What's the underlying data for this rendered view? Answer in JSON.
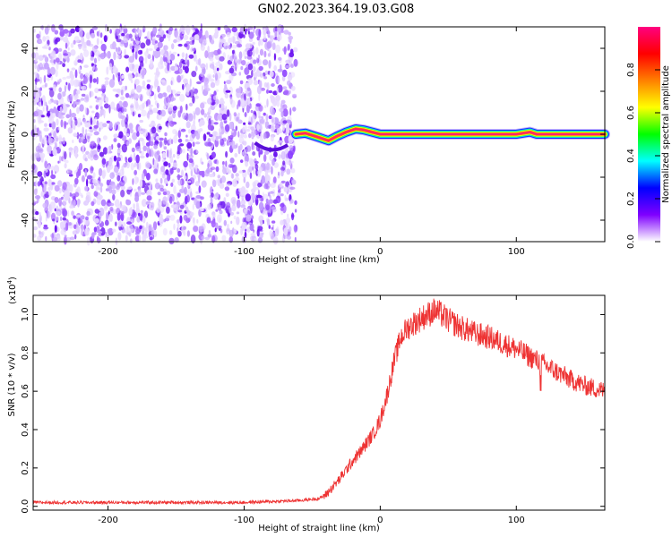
{
  "title": "GN02.2023.364.19.03.G08",
  "colors": {
    "snr_line": "#ee3333",
    "noise_purple": "#7a2cff",
    "trace_core": "#ff2a6a"
  },
  "chart_data": [
    {
      "type": "heatmap",
      "xlabel": "Height of straight line (km)",
      "ylabel": "Frequency (Hz)",
      "xlim": [
        -255,
        165
      ],
      "ylim": [
        -50,
        50
      ],
      "xticks": [
        -200,
        -100,
        0,
        100
      ],
      "yticks": [
        -40,
        -20,
        0,
        20,
        40
      ],
      "xtick_labels": [
        "-200",
        "-100",
        "0",
        "100"
      ],
      "ytick_labels": [
        "-40",
        "-20",
        "0",
        "20",
        "40"
      ],
      "colorbar": {
        "label": "Normalized spectral amplitude",
        "range": [
          0,
          1
        ],
        "ticks": [
          0.0,
          0.2,
          0.4,
          0.6,
          0.8
        ],
        "tick_labels": [
          "0.0",
          "0.2",
          "0.4",
          "0.6",
          "0.8"
        ],
        "colormap": [
          "#ffffff",
          "#7f00ff",
          "#0000ff",
          "#00ffff",
          "#00ff00",
          "#ffff00",
          "#ff8000",
          "#ff0000",
          "#ff0080"
        ]
      },
      "noise_extent_x": [
        -255,
        -62
      ],
      "trace": {
        "x": [
          -62,
          -55,
          -45,
          -38,
          -32,
          -25,
          -18,
          -12,
          -6,
          0,
          10,
          20,
          30,
          60,
          100,
          110,
          115,
          130,
          165
        ],
        "y": [
          0,
          0.5,
          -1.5,
          -3,
          -1,
          1,
          2.5,
          2,
          1,
          0,
          0,
          0,
          0,
          0,
          0,
          1,
          0,
          0,
          0
        ]
      }
    },
    {
      "type": "line",
      "xlabel": "Height of straight line (km)",
      "ylabel": "SNR (10 * v/v)",
      "yscale_label": "(x10",
      "yscale_exp": "4",
      "yscale_close": ")",
      "xlim": [
        -255,
        165
      ],
      "ylim": [
        -0.02,
        1.1
      ],
      "xticks": [
        -200,
        -100,
        0,
        100
      ],
      "yticks": [
        0.0,
        0.2,
        0.4,
        0.6,
        0.8,
        1.0
      ],
      "xtick_labels": [
        "-200",
        "-100",
        "0",
        "100"
      ],
      "ytick_labels": [
        "0.0",
        "0.2",
        "0.4",
        "0.6",
        "0.8",
        "1.0"
      ],
      "series": [
        {
          "x": [
            -255,
            -200,
            -150,
            -100,
            -60,
            -45,
            -40,
            -35,
            -30,
            -25,
            -20,
            -15,
            -10,
            -5,
            0,
            5,
            10,
            15,
            20,
            30,
            40,
            45,
            50,
            60,
            70,
            80,
            90,
            100,
            110,
            120,
            130,
            140,
            150,
            165
          ],
          "y": [
            0.02,
            0.02,
            0.02,
            0.02,
            0.03,
            0.04,
            0.06,
            0.1,
            0.14,
            0.19,
            0.24,
            0.28,
            0.33,
            0.38,
            0.45,
            0.58,
            0.75,
            0.88,
            0.93,
            0.98,
            1.02,
            1.0,
            0.97,
            0.93,
            0.9,
            0.88,
            0.85,
            0.82,
            0.78,
            0.74,
            0.7,
            0.66,
            0.63,
            0.6
          ]
        }
      ]
    }
  ]
}
